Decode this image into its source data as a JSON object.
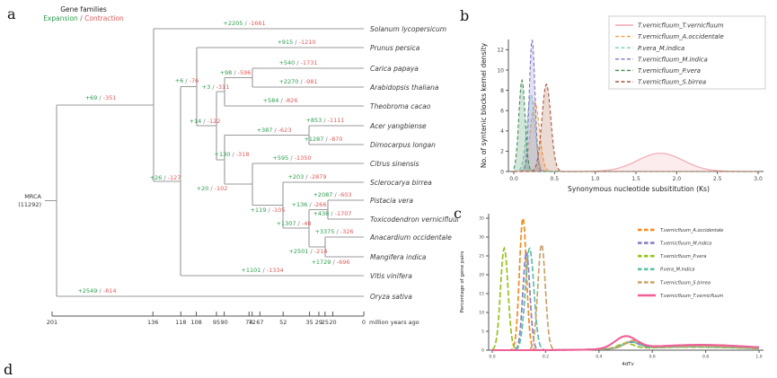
{
  "figure": {
    "panel_labels": {
      "a": "a",
      "b": "b",
      "c": "c",
      "d": "d"
    },
    "panel_a": {
      "legend_title": "Gene families",
      "legend_expansion": "Expansion",
      "legend_separator": " / ",
      "legend_contraction": "Contraction",
      "mrca_label": "MRCA",
      "mrca_count": "(11292)",
      "sep": " / ",
      "axis_unit": "million years ago",
      "timeline_ticks": [
        201,
        136,
        118,
        108,
        95,
        90,
        74,
        72,
        67,
        52,
        35,
        29,
        25,
        20,
        0
      ],
      "species": [
        {
          "name": "Solanum lycopersicum",
          "exp": "+2205",
          "con": "-1661"
        },
        {
          "name": "Prunus persica",
          "exp": "+915",
          "con": "-1210"
        },
        {
          "name": "Carica papaya",
          "exp": "+540",
          "con": "-1731"
        },
        {
          "name": "Arabidopsis thaliana",
          "exp": "+2270",
          "con": "-981"
        },
        {
          "name": "Theobroma cacao",
          "exp": "+584",
          "con": "-826"
        },
        {
          "name": "Acer yangbiense",
          "exp": "+853",
          "con": "-1111"
        },
        {
          "name": "Dimocarpus longan",
          "exp": "+1287",
          "con": "-870"
        },
        {
          "name": "Citrus sinensis",
          "exp": "+595",
          "con": "-1350"
        },
        {
          "name": "Sclerocarya birrea",
          "exp": "+203",
          "con": "-2879"
        },
        {
          "name": "Pistacia vera",
          "exp": "+2087",
          "con": "-603"
        },
        {
          "name": "Toxicodendron vernicifluum",
          "exp": "+438",
          "con": "-1707"
        },
        {
          "name": "Anacardium occidentale",
          "exp": "+3375",
          "con": "-326"
        },
        {
          "name": "Mangifera indica",
          "exp": "+1729",
          "con": "-696"
        },
        {
          "name": "Vitis vinifera",
          "exp": "+1101",
          "con": "-1334"
        },
        {
          "name": "Oryza sativa",
          "exp": "+2549",
          "con": "-814"
        }
      ],
      "branch_labels": [
        {
          "exp": "+69",
          "con": "-351"
        },
        {
          "exp": "+26",
          "con": "-127"
        },
        {
          "exp": "+6",
          "con": "-76"
        },
        {
          "exp": "+14",
          "con": "-122"
        },
        {
          "exp": "+3",
          "con": "-311"
        },
        {
          "exp": "+98",
          "con": "-596"
        },
        {
          "exp": "+130",
          "con": "-318"
        },
        {
          "exp": "+387",
          "con": "-623"
        },
        {
          "exp": "+20",
          "con": "-102"
        },
        {
          "exp": "+119",
          "con": "-105"
        },
        {
          "exp": "+1307",
          "con": "-48"
        },
        {
          "exp": "+136",
          "con": "-266"
        },
        {
          "exp": "+2501",
          "con": "-214"
        }
      ]
    },
    "chart_data": [
      {
        "type": "area",
        "panel": "b",
        "xlabel": "Synonymous nucleotide subsititution (Ks)",
        "ylabel": "No. of syntenic blocks kernel density",
        "xlim": [
          0,
          3.0
        ],
        "ylim": [
          0,
          13
        ],
        "xticks": [
          0.0,
          0.5,
          1.0,
          1.5,
          2.0,
          2.5,
          3.0
        ],
        "xtick_decimals": 1,
        "yticks": [
          0,
          2,
          4,
          6,
          8,
          10,
          12
        ],
        "ytick_decimals": 0,
        "grid": false,
        "legend_position": "top-right",
        "series": [
          {
            "name": "T.vernicfluum_T.vernicfluum",
            "color": "#f2a7b3",
            "dash": "solid",
            "components": [
              {
                "mu": 1.8,
                "sigma": 0.28,
                "amp": 1.8
              }
            ]
          },
          {
            "name": "T.vernicfluum_A.occidentale",
            "color": "#f0a04b",
            "dash": "dashed",
            "components": [
              {
                "mu": 0.26,
                "sigma": 0.055,
                "amp": 6.8
              }
            ]
          },
          {
            "name": "P.vera_M.indica",
            "color": "#7fc7bc",
            "dash": "dashed",
            "components": [
              {
                "mu": 0.21,
                "sigma": 0.05,
                "amp": 7.5
              }
            ]
          },
          {
            "name": "T.vernicfluum_M.indica",
            "color": "#8073c8",
            "dash": "dashed",
            "components": [
              {
                "mu": 0.225,
                "sigma": 0.035,
                "amp": 13.0
              }
            ]
          },
          {
            "name": "T.vernicfluum_P.vera",
            "color": "#3d8b57",
            "dash": "dashed",
            "components": [
              {
                "mu": 0.1,
                "sigma": 0.038,
                "amp": 9.0
              }
            ]
          },
          {
            "name": "T.vernicfluum_S.birrea",
            "color": "#a9563a",
            "dash": "dashed",
            "components": [
              {
                "mu": 0.4,
                "sigma": 0.055,
                "amp": 8.6
              }
            ]
          }
        ]
      },
      {
        "type": "line",
        "panel": "c",
        "xlabel": "4dTv",
        "ylabel": "Percentage of gene pairs",
        "xlim": [
          0,
          1.0
        ],
        "ylim": [
          0,
          35
        ],
        "xticks": [
          0.0,
          0.2,
          0.4,
          0.6,
          0.8,
          1.0
        ],
        "xtick_decimals": 1,
        "yticks": [
          0,
          5,
          10,
          15,
          20,
          25,
          30,
          35
        ],
        "ytick_decimals": 0,
        "grid": false,
        "legend_position": "top-right",
        "series": [
          {
            "name": "T.vernicfluum_A.occidentale",
            "color": "#f08c1e",
            "dash": "dashed",
            "components": [
              {
                "mu": 0.115,
                "sigma": 0.013,
                "amp": 35
              },
              {
                "mu": 0.52,
                "sigma": 0.03,
                "amp": 1.8
              },
              {
                "mu": 0.75,
                "sigma": 0.22,
                "amp": 1.0
              }
            ]
          },
          {
            "name": "T.vernicfluum_M.indica",
            "color": "#8d7cc2",
            "dash": "dashed",
            "components": [
              {
                "mu": 0.128,
                "sigma": 0.013,
                "amp": 26
              },
              {
                "mu": 0.52,
                "sigma": 0.03,
                "amp": 1.6
              },
              {
                "mu": 0.75,
                "sigma": 0.22,
                "amp": 0.9
              }
            ]
          },
          {
            "name": "T.vernicfluum_P.vera",
            "color": "#97c11f",
            "dash": "dashed",
            "components": [
              {
                "mu": 0.045,
                "sigma": 0.014,
                "amp": 27
              },
              {
                "mu": 0.5,
                "sigma": 0.03,
                "amp": 1.4
              },
              {
                "mu": 0.75,
                "sigma": 0.22,
                "amp": 0.8
              }
            ]
          },
          {
            "name": "P.vera_M.indica",
            "color": "#5bbfa5",
            "dash": "dashed",
            "components": [
              {
                "mu": 0.14,
                "sigma": 0.016,
                "amp": 27
              },
              {
                "mu": 0.52,
                "sigma": 0.03,
                "amp": 1.7
              },
              {
                "mu": 0.75,
                "sigma": 0.22,
                "amp": 0.9
              }
            ]
          },
          {
            "name": "T.vernicfluum_S.birrea",
            "color": "#c9a36a",
            "dash": "dashed",
            "components": [
              {
                "mu": 0.185,
                "sigma": 0.014,
                "amp": 28
              },
              {
                "mu": 0.53,
                "sigma": 0.03,
                "amp": 2.0
              },
              {
                "mu": 0.75,
                "sigma": 0.22,
                "amp": 1.0
              }
            ]
          },
          {
            "name": "T.vernicfluum_T.vernicfluum",
            "color": "#ef5f96",
            "dash": "solid",
            "components": [
              {
                "mu": 0.5,
                "sigma": 0.04,
                "amp": 3.2
              },
              {
                "mu": 0.78,
                "sigma": 0.2,
                "amp": 1.4
              }
            ]
          }
        ]
      }
    ]
  }
}
